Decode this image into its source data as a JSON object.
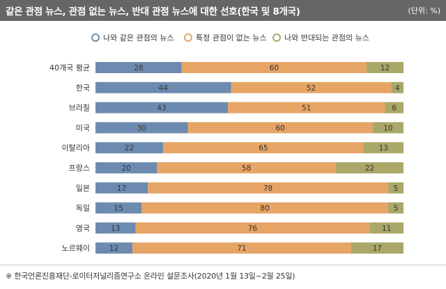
{
  "title": "같은 관점 뉴스, 관점 없는 뉴스, 반대 관점 뉴스에 대한 선호(한국 및 8개국)",
  "unit": "(단위: %)",
  "note": "※  한국언론진흥재단-로이터저널리즘연구소 온라인 설문조사(2020년 1월 13일~2월 25일)",
  "colors": {
    "header_bg": "#666666",
    "series": [
      "#6d8bb0",
      "#e6a565",
      "#a9a868"
    ]
  },
  "chart_data": {
    "type": "bar",
    "stacked": true,
    "orientation": "horizontal",
    "xlim": [
      0,
      100
    ],
    "categories": [
      "40개국 평균",
      "한국",
      "브라질",
      "미국",
      "이탈리아",
      "프랑스",
      "일본",
      "독일",
      "영국",
      "노르웨이"
    ],
    "series": [
      {
        "name": "나와 같은 관점의 뉴스",
        "values": [
          28,
          44,
          43,
          30,
          22,
          20,
          17,
          15,
          13,
          12
        ]
      },
      {
        "name": "특정 관점이 없는 뉴스",
        "values": [
          60,
          52,
          51,
          60,
          65,
          58,
          78,
          80,
          76,
          71
        ]
      },
      {
        "name": "나와 반대되는 관점의 뉴스",
        "values": [
          12,
          4,
          6,
          10,
          13,
          22,
          5,
          5,
          11,
          17
        ]
      }
    ],
    "legend_position": "top"
  }
}
